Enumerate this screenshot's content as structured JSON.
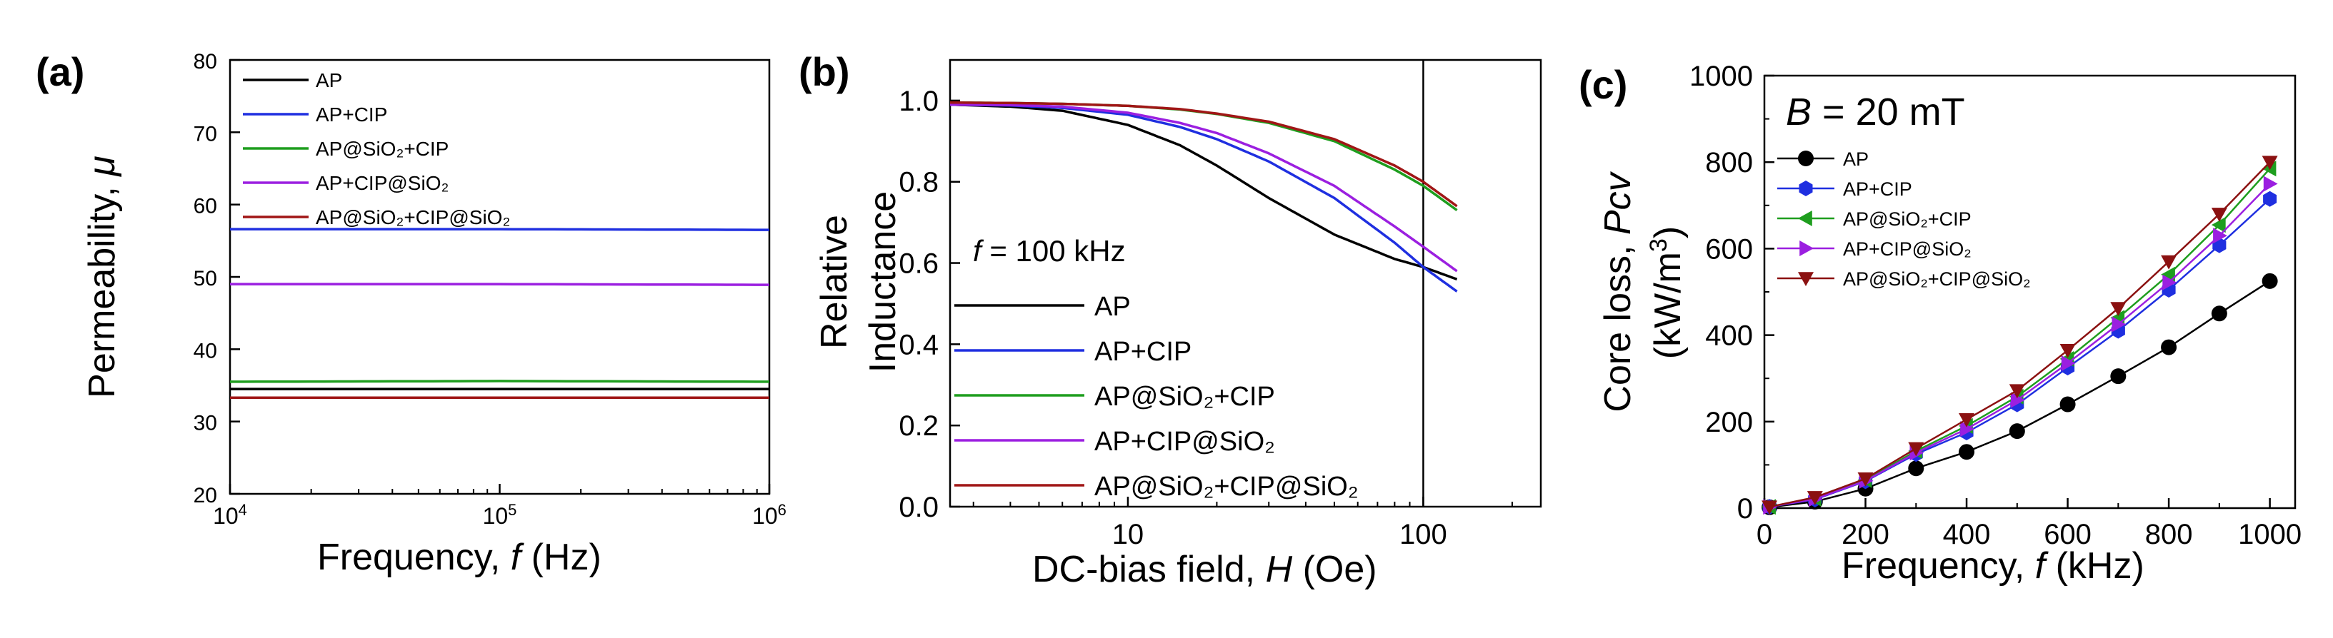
{
  "chart_data": [
    {
      "panel": "(a)",
      "type": "line",
      "xlabel": "Frequency, ",
      "xlabel_var": "f",
      "xlabel_unit": " (Hz)",
      "ylabel": "Permeability, ",
      "ylabel_var": "μ",
      "xscale": "log",
      "xlim": [
        10000,
        1000000
      ],
      "ylim": [
        20,
        80
      ],
      "xticks": [
        {
          "v": 10000,
          "base": "10",
          "exp": "4"
        },
        {
          "v": 100000,
          "base": "10",
          "exp": "5"
        },
        {
          "v": 1000000,
          "base": "10",
          "exp": "6"
        }
      ],
      "yticks": [
        "20",
        "30",
        "40",
        "50",
        "60",
        "70",
        "80"
      ],
      "legend_position": "top-left",
      "series": [
        {
          "name": "AP",
          "color": "#000000",
          "x": [
            10000,
            100000,
            1000000
          ],
          "y": [
            34.5,
            34.5,
            34.5
          ]
        },
        {
          "name": "AP+CIP",
          "color": "#1f2fe0",
          "x": [
            10000,
            100000,
            1000000
          ],
          "y": [
            56.6,
            56.6,
            56.5
          ]
        },
        {
          "name": "AP@SiO₂+CIP",
          "color": "#1e9e1e",
          "x": [
            10000,
            100000,
            1000000
          ],
          "y": [
            35.5,
            35.6,
            35.5
          ]
        },
        {
          "name": "AP+CIP@SiO₂",
          "color": "#9b1fe0",
          "x": [
            10000,
            100000,
            1000000
          ],
          "y": [
            49.0,
            49.0,
            48.9
          ]
        },
        {
          "name": "AP@SiO₂+CIP@SiO₂",
          "color": "#a01616",
          "x": [
            10000,
            100000,
            1000000
          ],
          "y": [
            33.3,
            33.3,
            33.3
          ]
        }
      ]
    },
    {
      "panel": "(b)",
      "type": "line",
      "xlabel": "DC-bias field, ",
      "xlabel_var": "H",
      "xlabel_unit": " (Oe)",
      "ylabel_line1": "Relative",
      "ylabel_line2": "Inductance",
      "xscale": "log",
      "xlim": [
        2.5,
        250
      ],
      "ylim": [
        0,
        1.1
      ],
      "xticks": [
        "10",
        "100"
      ],
      "yticks": [
        "0.0",
        "0.2",
        "0.4",
        "0.6",
        "0.8",
        "1.0"
      ],
      "annotation": "f = 100 kHz",
      "annotation_var": "f",
      "annotation_rest": " = 100 kHz",
      "vline_x": 100,
      "legend_position": "bottom-left",
      "series": [
        {
          "name": "AP",
          "color": "#000000",
          "x": [
            2.5,
            4,
            6,
            10,
            15,
            20,
            30,
            50,
            80,
            100,
            130
          ],
          "y": [
            0.99,
            0.985,
            0.975,
            0.94,
            0.89,
            0.84,
            0.76,
            0.67,
            0.61,
            0.59,
            0.56
          ]
        },
        {
          "name": "AP+CIP",
          "color": "#1f2fe0",
          "x": [
            2.5,
            4,
            6,
            10,
            15,
            20,
            30,
            50,
            80,
            100,
            130
          ],
          "y": [
            0.99,
            0.988,
            0.982,
            0.965,
            0.935,
            0.905,
            0.85,
            0.76,
            0.65,
            0.59,
            0.53
          ]
        },
        {
          "name": "AP@SiO₂+CIP",
          "color": "#1e9e1e",
          "x": [
            2.5,
            4,
            6,
            10,
            15,
            20,
            30,
            50,
            80,
            100,
            130
          ],
          "y": [
            0.995,
            0.994,
            0.992,
            0.987,
            0.978,
            0.967,
            0.945,
            0.9,
            0.83,
            0.79,
            0.73
          ]
        },
        {
          "name": "AP+CIP@SiO₂",
          "color": "#9b1fe0",
          "x": [
            2.5,
            4,
            6,
            10,
            15,
            20,
            30,
            50,
            80,
            100,
            130
          ],
          "y": [
            0.99,
            0.989,
            0.985,
            0.97,
            0.945,
            0.92,
            0.87,
            0.79,
            0.69,
            0.64,
            0.58
          ]
        },
        {
          "name": "AP@SiO₂+CIP@SiO₂",
          "color": "#a01616",
          "x": [
            2.5,
            4,
            6,
            10,
            15,
            20,
            30,
            50,
            80,
            100,
            130
          ],
          "y": [
            0.995,
            0.994,
            0.992,
            0.987,
            0.979,
            0.968,
            0.948,
            0.905,
            0.84,
            0.8,
            0.74
          ]
        }
      ]
    },
    {
      "panel": "(c)",
      "type": "line",
      "xlabel": "Frequency, ",
      "xlabel_var": "f",
      "xlabel_unit": " (kHz)",
      "ylabel_line1_pre": "Core loss, ",
      "ylabel_line1_var": "Pcv",
      "ylabel_line2": "(kW/m",
      "ylabel_line2_sup": "3",
      "ylabel_line2_end": ")",
      "xlim": [
        0,
        1050
      ],
      "ylim": [
        0,
        1000
      ],
      "xticks": [
        "0",
        "200",
        "400",
        "600",
        "800",
        "1000"
      ],
      "yticks": [
        "0",
        "200",
        "400",
        "600",
        "800",
        "1000"
      ],
      "annotation_var": "B",
      "annotation_rest": " = 20 mT",
      "legend_position": "top-left",
      "x": [
        10,
        100,
        200,
        300,
        400,
        500,
        600,
        700,
        800,
        900,
        1000
      ],
      "series": [
        {
          "name": "AP",
          "color": "#000000",
          "marker": "circle",
          "y": [
            2,
            15,
            45,
            92,
            130,
            178,
            240,
            305,
            372,
            450,
            525
          ]
        },
        {
          "name": "AP+CIP",
          "color": "#1f2fe0",
          "marker": "hexagon",
          "y": [
            3,
            20,
            62,
            125,
            175,
            240,
            325,
            410,
            505,
            608,
            715
          ]
        },
        {
          "name": "AP@SiO₂+CIP",
          "color": "#1e9e1e",
          "marker": "triangle-left",
          "y": [
            3,
            22,
            65,
            132,
            190,
            258,
            345,
            440,
            540,
            655,
            785
          ]
        },
        {
          "name": "AP+CIP@SiO₂",
          "color": "#9b1fe0",
          "marker": "triangle-right",
          "y": [
            3,
            21,
            63,
            128,
            183,
            250,
            335,
            425,
            522,
            630,
            750
          ]
        },
        {
          "name": "AP@SiO₂+CIP@SiO₂",
          "color": "#8b1111",
          "marker": "triangle-down",
          "y": [
            3,
            25,
            68,
            138,
            205,
            272,
            365,
            462,
            570,
            680,
            800
          ]
        }
      ]
    }
  ]
}
